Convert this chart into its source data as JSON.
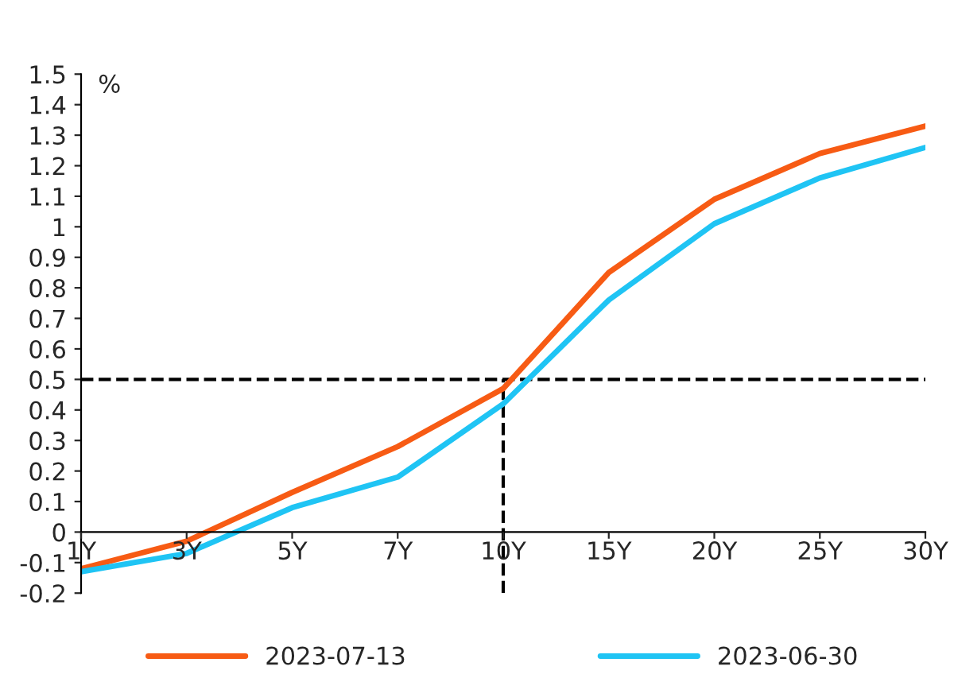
{
  "chart_data": {
    "type": "line",
    "ylabel": "%",
    "categories": [
      "1Y",
      "3Y",
      "5Y",
      "7Y",
      "10Y",
      "15Y",
      "20Y",
      "25Y",
      "30Y"
    ],
    "series": [
      {
        "name": "2023-07-13",
        "color": "#f75b14",
        "values": [
          -0.12,
          -0.03,
          0.13,
          0.28,
          0.47,
          0.85,
          1.09,
          1.24,
          1.33
        ]
      },
      {
        "name": "2023-06-30",
        "color": "#1fc4f4",
        "values": [
          -0.13,
          -0.07,
          0.08,
          0.18,
          0.42,
          0.76,
          1.01,
          1.16,
          1.26
        ]
      }
    ],
    "ylim": [
      -0.2,
      1.5
    ],
    "yticks": [
      -0.2,
      -0.1,
      0,
      0.1,
      0.2,
      0.3,
      0.4,
      0.5,
      0.6,
      0.7,
      0.8,
      0.9,
      1,
      1.1,
      1.2,
      1.3,
      1.4,
      1.5
    ],
    "ref_lines": [
      {
        "axis": "y",
        "value": 0.5,
        "color": "#000000",
        "line_style": "dashed"
      },
      {
        "axis": "x",
        "value": "10Y",
        "color": "#000000",
        "line_style": "dashed"
      }
    ],
    "legend": "bottom",
    "grid": false,
    "marker": "none",
    "line_style": "solid"
  }
}
